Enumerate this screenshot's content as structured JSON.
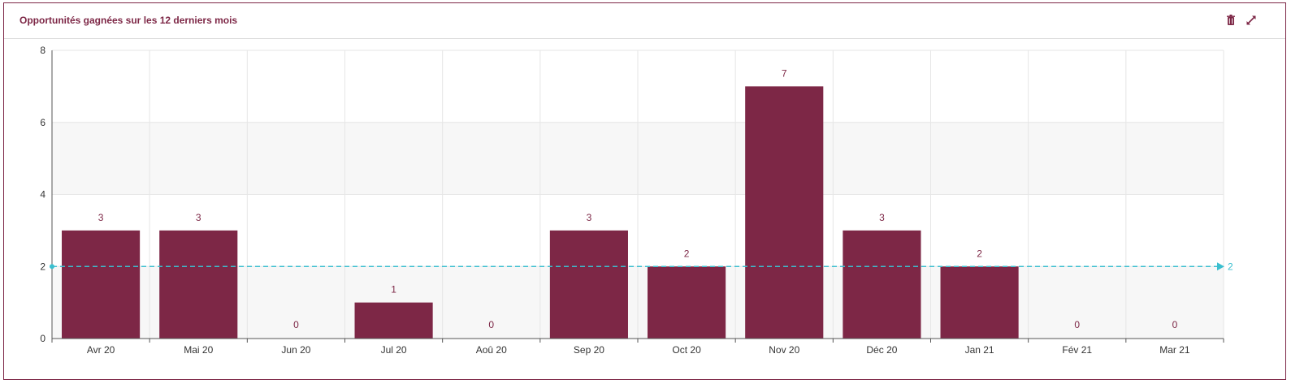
{
  "panel": {
    "title": "Opportunités gagnées sur les 12 derniers mois",
    "delete_icon": "trash-icon",
    "expand_icon": "expand-icon"
  },
  "colors": {
    "bar": "#7d2746",
    "bar_label": "#7d2746",
    "average_line": "#3bbfcf",
    "grid": "#e6e6e6",
    "band": "#f7f7f7",
    "axis": "#555555",
    "title": "#7d2746"
  },
  "chart_data": {
    "type": "bar",
    "title": "Opportunités gagnées sur les 12 derniers mois",
    "categories": [
      "Avr 20",
      "Mai 20",
      "Jun 20",
      "Jul 20",
      "Aoû 20",
      "Sep 20",
      "Oct 20",
      "Nov 20",
      "Déc 20",
      "Jan 21",
      "Fév 21",
      "Mar 21"
    ],
    "values": [
      3,
      3,
      0,
      1,
      0,
      3,
      2,
      7,
      3,
      2,
      0,
      0
    ],
    "ylim": [
      0,
      8
    ],
    "yticks": [
      "0",
      "2",
      "4",
      "6",
      "8"
    ],
    "average": 2,
    "average_label": "2",
    "data_labels": true,
    "grid": true,
    "legend": "none"
  }
}
